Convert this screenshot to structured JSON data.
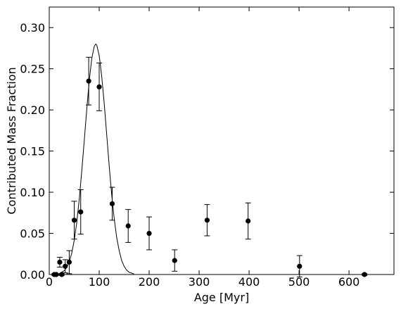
{
  "chart_data": {
    "type": "scatter",
    "xlabel": "Age [Myr]",
    "ylabel": "Contributed Mass Fraction",
    "color": "#000000",
    "xlim": [
      0,
      690
    ],
    "ylim": [
      0,
      0.325
    ],
    "xticks": [
      0,
      100,
      200,
      300,
      400,
      500,
      600
    ],
    "yticks": [
      {
        "value": 0,
        "label": "0.00"
      },
      {
        "value": 0.05,
        "label": "0.05"
      },
      {
        "value": 0.1,
        "label": "0.10"
      },
      {
        "value": 0.15,
        "label": "0.15"
      },
      {
        "value": 0.2,
        "label": "0.20"
      },
      {
        "value": 0.25,
        "label": "0.25"
      },
      {
        "value": 0.3,
        "label": "0.30"
      }
    ],
    "x": [
      10,
      14,
      21,
      25,
      32,
      40,
      50,
      63,
      79,
      100,
      126,
      158,
      200,
      251,
      316,
      398,
      501,
      631
    ],
    "values": [
      0.0,
      0.0,
      0.015,
      0.0,
      0.01,
      0.015,
      0.066,
      0.076,
      0.235,
      0.228,
      0.086,
      0.059,
      0.05,
      0.017,
      0.066,
      0.065,
      0.01,
      0.0
    ],
    "errors": [
      0.001,
      0.001,
      0.006,
      0.001,
      0.008,
      0.014,
      0.023,
      0.027,
      0.029,
      0.029,
      0.02,
      0.02,
      0.02,
      0.013,
      0.019,
      0.022,
      0.013,
      0.001
    ],
    "curve_x": [
      20,
      30,
      35,
      40,
      45,
      50,
      55,
      60,
      65,
      70,
      75,
      80,
      85,
      90,
      93,
      95,
      100,
      105,
      110,
      115,
      120,
      125,
      130,
      135,
      140,
      145,
      150,
      155,
      160,
      170
    ],
    "curve_y": [
      0.0011,
      0.0046,
      0.0087,
      0.0154,
      0.0259,
      0.0415,
      0.063,
      0.091,
      0.125,
      0.162,
      0.2,
      0.235,
      0.262,
      0.277,
      0.28,
      0.279,
      0.266,
      0.241,
      0.208,
      0.17,
      0.132,
      0.097,
      0.068,
      0.045,
      0.029,
      0.017,
      0.0098,
      0.0053,
      0.0027,
      0.0006
    ]
  }
}
